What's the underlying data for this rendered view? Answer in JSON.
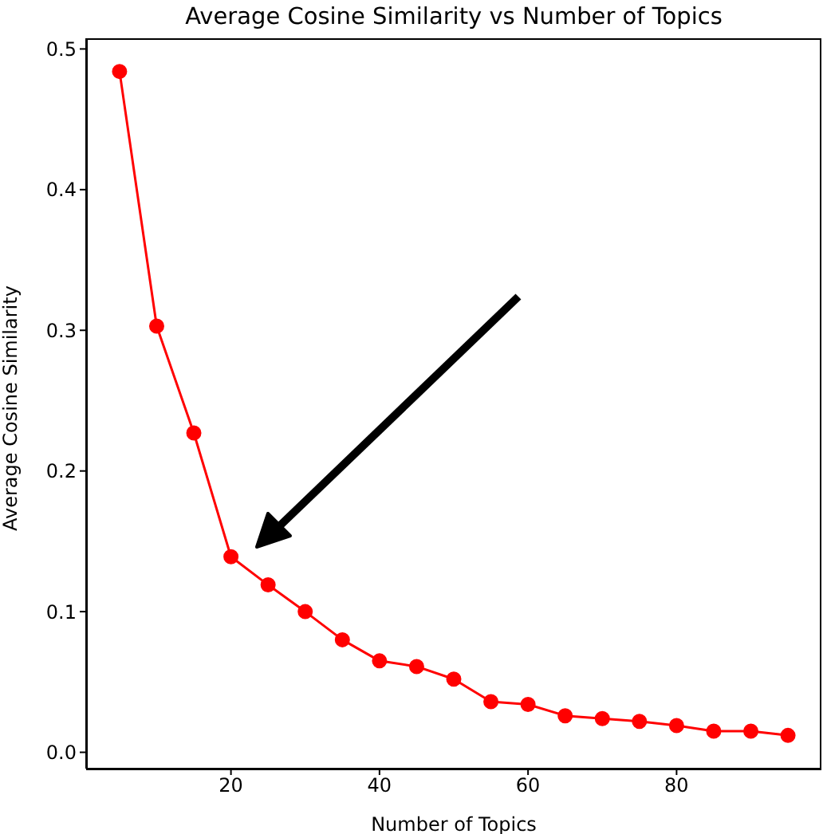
{
  "chart_data": {
    "type": "line",
    "title": "Average Cosine Similarity vs Number of Topics",
    "xlabel": "Number of Topics",
    "ylabel": "Average Cosine Similarity",
    "x": [
      5,
      10,
      15,
      20,
      25,
      30,
      35,
      40,
      45,
      50,
      55,
      60,
      65,
      70,
      75,
      80,
      85,
      90,
      95
    ],
    "series": [
      {
        "color": "#ff0000",
        "values": [
          0.484,
          0.303,
          0.227,
          0.139,
          0.119,
          0.1,
          0.08,
          0.065,
          0.061,
          0.052,
          0.036,
          0.034,
          0.026,
          0.024,
          0.022,
          0.019,
          0.015,
          0.015,
          0.012
        ]
      }
    ],
    "xlim": [
      0.5,
      99.5
    ],
    "xticks": [
      20,
      40,
      60,
      80
    ],
    "ylim": [
      -0.0116,
      0.5076
    ],
    "yticks": [
      {
        "value": 0,
        "label": "0.0"
      },
      {
        "value": 0.1,
        "label": "0.1"
      },
      {
        "value": 0.2,
        "label": "0.2"
      },
      {
        "value": 0.3,
        "label": "0.3"
      },
      {
        "value": 0.4,
        "label": "0.4"
      },
      {
        "value": 0.5,
        "label": "0.5"
      }
    ],
    "grid": false,
    "legend": false,
    "marker": "circle",
    "line_style": "solid"
  }
}
